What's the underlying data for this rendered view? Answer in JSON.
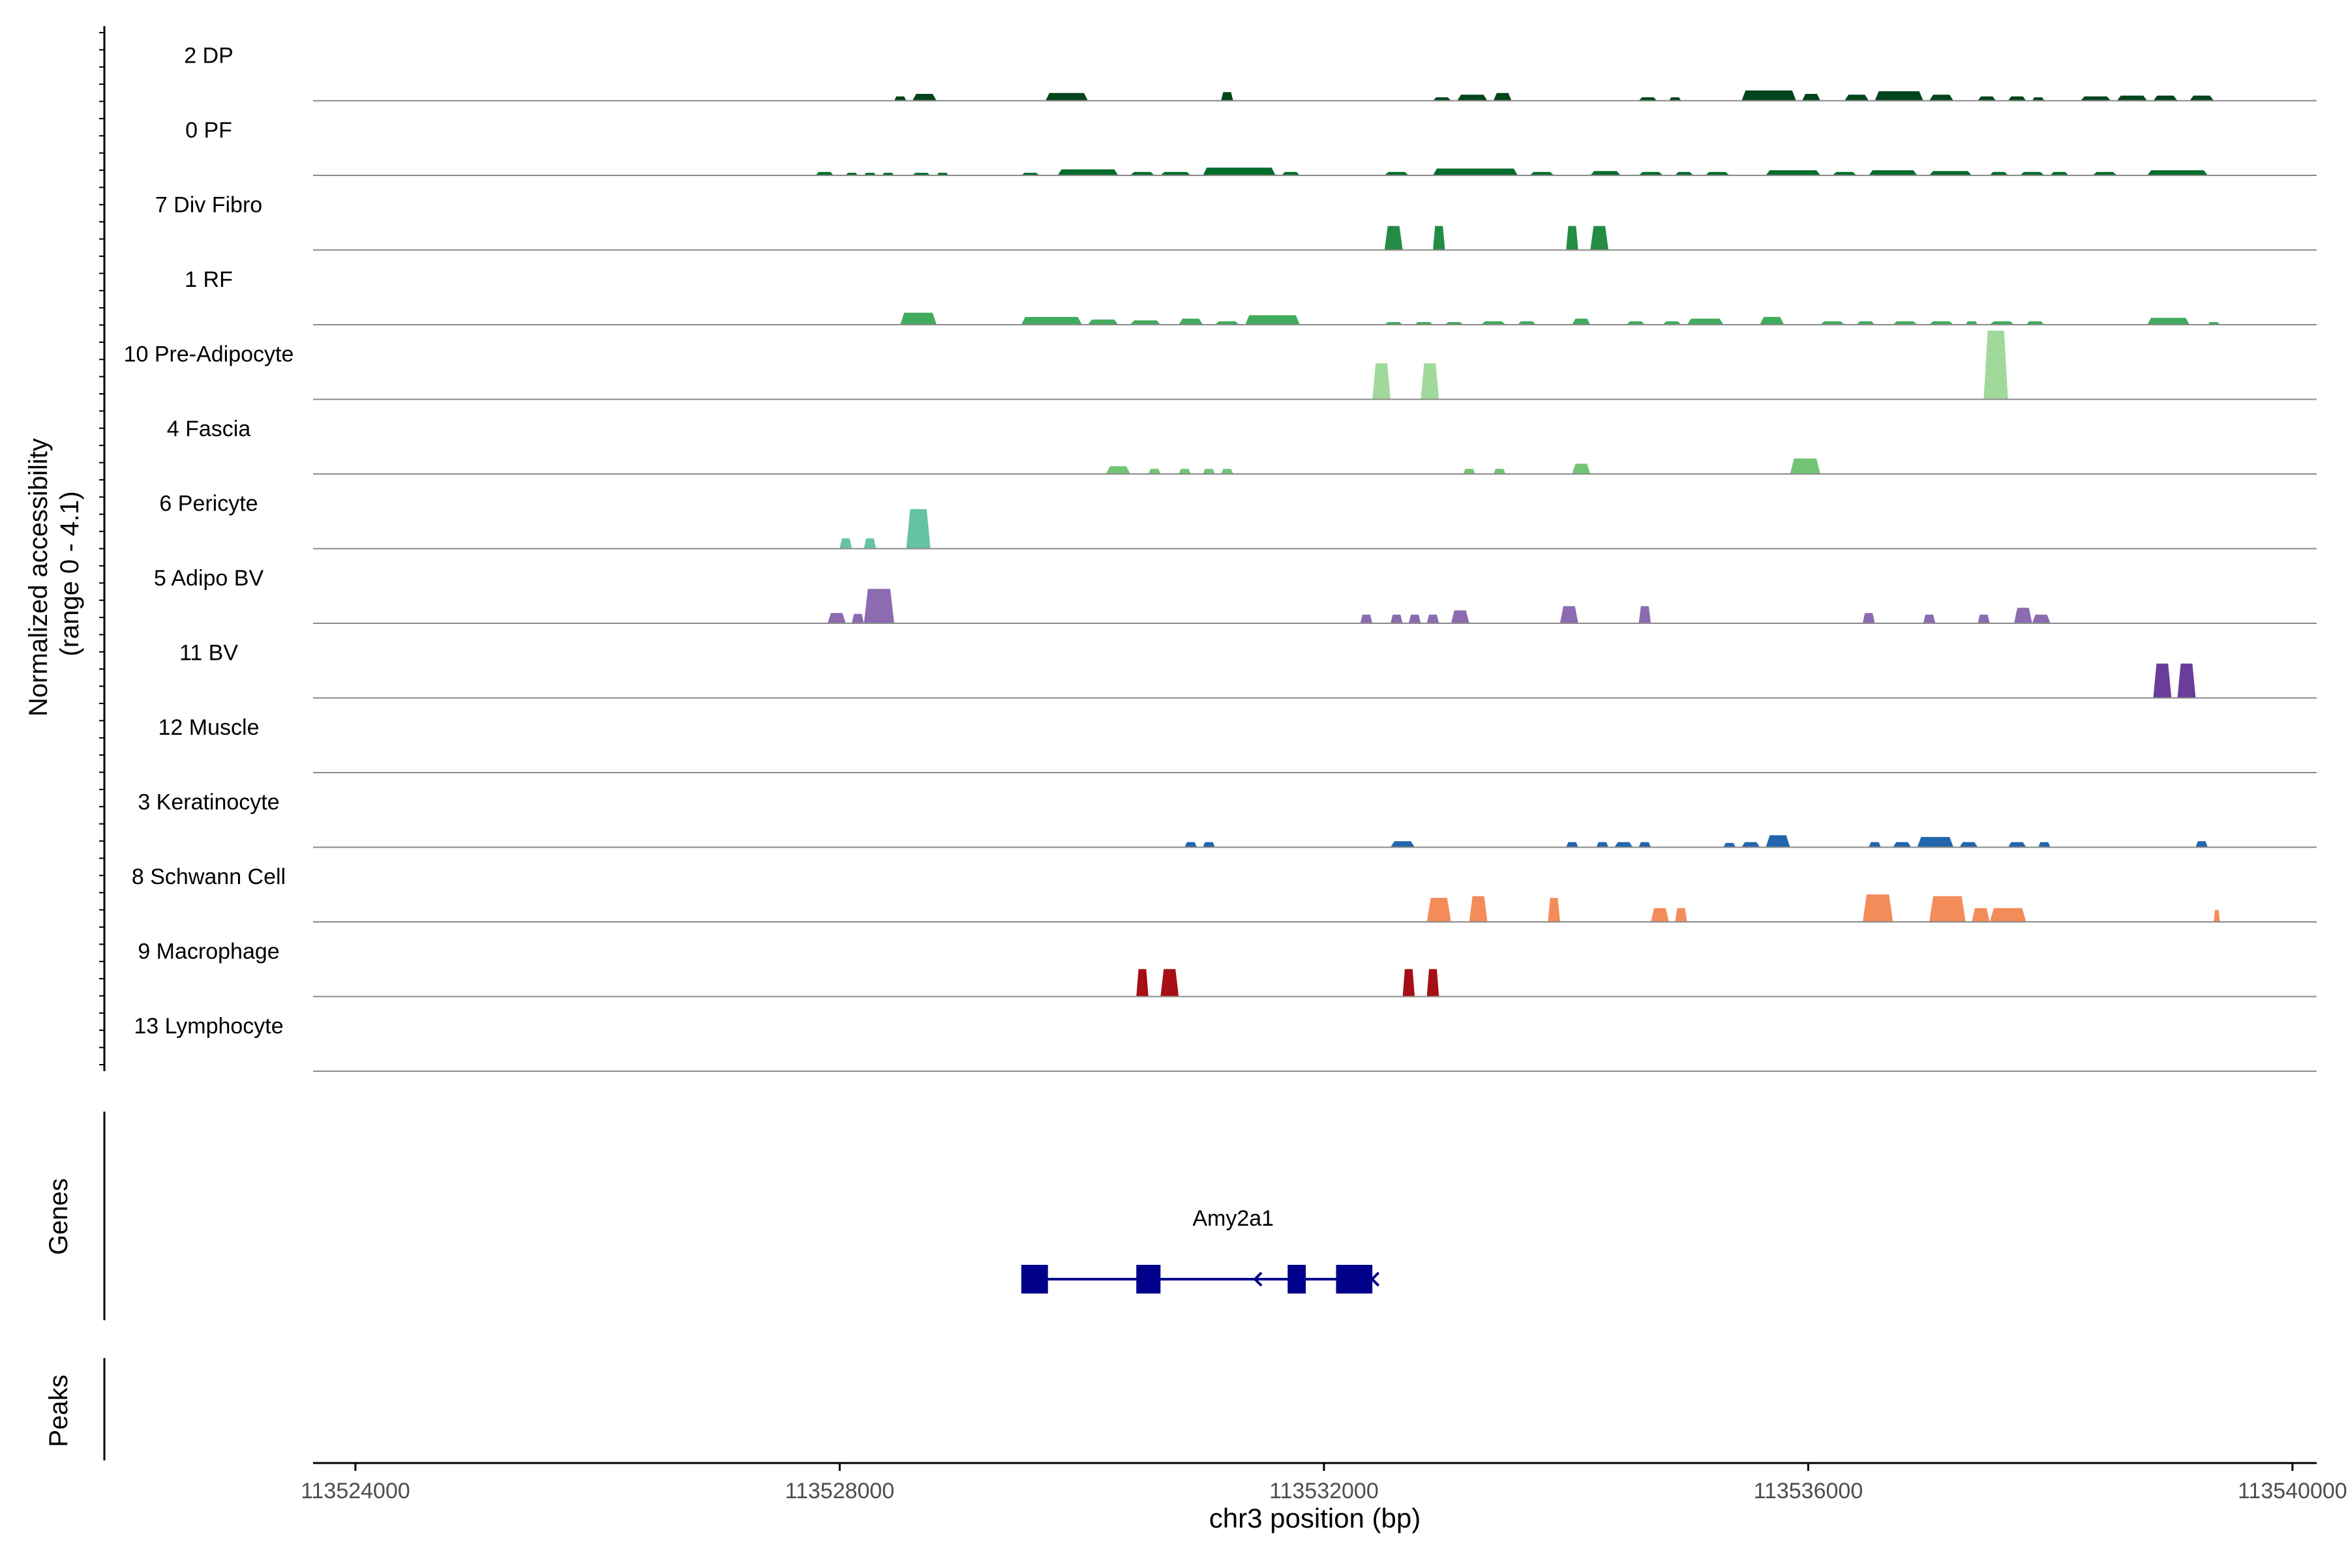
{
  "chart_data": {
    "type": "area",
    "title": "",
    "ylabel_line1": "Normalized accessibility",
    "ylabel_line2": "(range 0 - 4.1)",
    "genes_label": "Genes",
    "peaks_label": "Peaks",
    "xlabel": "chr3 position (bp)",
    "xlim": [
      113523650,
      113540200
    ],
    "xticks": [
      113524000,
      113528000,
      113532000,
      113536000,
      113540000
    ],
    "xtick_labels": [
      "113524000",
      "113528000",
      "113532000",
      "113536000",
      "113540000"
    ],
    "ylim": [
      0,
      4.1
    ],
    "grid": false,
    "legend": "none",
    "tracks": [
      {
        "label": "2 DP",
        "color": "#00441b",
        "peaks": [
          [
            113528450,
            113528550,
            0.25
          ],
          [
            113528600,
            113528800,
            0.4
          ],
          [
            113529700,
            113530050,
            0.45
          ],
          [
            113531150,
            113531250,
            0.5
          ],
          [
            113532900,
            113533050,
            0.2
          ],
          [
            113533100,
            113533350,
            0.35
          ],
          [
            113533400,
            113533550,
            0.45
          ],
          [
            113534600,
            113534750,
            0.2
          ],
          [
            113534850,
            113534950,
            0.2
          ],
          [
            113535450,
            113535900,
            0.6
          ],
          [
            113535950,
            113536100,
            0.4
          ],
          [
            113536300,
            113536500,
            0.35
          ],
          [
            113536550,
            113536950,
            0.55
          ],
          [
            113537000,
            113537200,
            0.35
          ],
          [
            113537400,
            113537550,
            0.25
          ],
          [
            113537650,
            113537800,
            0.25
          ],
          [
            113537850,
            113537950,
            0.2
          ],
          [
            113538250,
            113538500,
            0.25
          ],
          [
            113538550,
            113538800,
            0.3
          ],
          [
            113538850,
            113539050,
            0.3
          ],
          [
            113539150,
            113539350,
            0.3
          ]
        ]
      },
      {
        "label": "0 PF",
        "color": "#006d2c",
        "peaks": [
          [
            113527800,
            113527950,
            0.2
          ],
          [
            113528050,
            113528150,
            0.15
          ],
          [
            113528200,
            113528300,
            0.15
          ],
          [
            113528350,
            113528450,
            0.15
          ],
          [
            113528600,
            113528750,
            0.15
          ],
          [
            113528800,
            113528900,
            0.15
          ],
          [
            113529500,
            113529650,
            0.15
          ],
          [
            113529800,
            113530300,
            0.35
          ],
          [
            113530400,
            113530600,
            0.2
          ],
          [
            113530650,
            113530900,
            0.2
          ],
          [
            113531000,
            113531600,
            0.45
          ],
          [
            113531650,
            113531800,
            0.2
          ],
          [
            113532500,
            113532700,
            0.2
          ],
          [
            113532900,
            113533600,
            0.4
          ],
          [
            113533700,
            113533900,
            0.2
          ],
          [
            113534200,
            113534450,
            0.25
          ],
          [
            113534600,
            113534800,
            0.2
          ],
          [
            113534900,
            113535050,
            0.2
          ],
          [
            113535150,
            113535350,
            0.2
          ],
          [
            113535650,
            113536100,
            0.3
          ],
          [
            113536200,
            113536400,
            0.2
          ],
          [
            113536500,
            113536900,
            0.3
          ],
          [
            113537000,
            113537350,
            0.25
          ],
          [
            113537500,
            113537650,
            0.2
          ],
          [
            113537750,
            113537950,
            0.2
          ],
          [
            113538000,
            113538150,
            0.2
          ],
          [
            113538350,
            113538550,
            0.2
          ],
          [
            113538800,
            113539300,
            0.3
          ]
        ]
      },
      {
        "label": "7 Div Fibro",
        "color": "#238b45",
        "peaks": [
          [
            113532500,
            113532650,
            1.4
          ],
          [
            113532900,
            113533000,
            1.4
          ],
          [
            113534000,
            113534100,
            1.4
          ],
          [
            113534200,
            113534350,
            1.4
          ]
        ]
      },
      {
        "label": "1 RF",
        "color": "#41ab5d",
        "peaks": [
          [
            113528500,
            113528800,
            0.7
          ],
          [
            113529500,
            113530000,
            0.45
          ],
          [
            113530050,
            113530300,
            0.3
          ],
          [
            113530400,
            113530650,
            0.25
          ],
          [
            113530800,
            113531000,
            0.35
          ],
          [
            113531100,
            113531300,
            0.2
          ],
          [
            113531350,
            113531800,
            0.55
          ],
          [
            113532500,
            113532650,
            0.15
          ],
          [
            113532750,
            113532900,
            0.15
          ],
          [
            113533000,
            113533150,
            0.15
          ],
          [
            113533300,
            113533500,
            0.2
          ],
          [
            113533600,
            113533750,
            0.2
          ],
          [
            113534050,
            113534200,
            0.35
          ],
          [
            113534500,
            113534650,
            0.2
          ],
          [
            113534800,
            113534950,
            0.2
          ],
          [
            113535000,
            113535300,
            0.35
          ],
          [
            113535600,
            113535800,
            0.45
          ],
          [
            113536100,
            113536300,
            0.2
          ],
          [
            113536400,
            113536550,
            0.2
          ],
          [
            113536700,
            113536900,
            0.2
          ],
          [
            113537000,
            113537200,
            0.2
          ],
          [
            113537300,
            113537400,
            0.2
          ],
          [
            113537500,
            113537700,
            0.2
          ],
          [
            113537800,
            113537950,
            0.2
          ],
          [
            113538800,
            113539150,
            0.4
          ],
          [
            113539300,
            113539400,
            0.15
          ]
        ]
      },
      {
        "label": "10 Pre-Adipocyte",
        "color": "#a1d99b",
        "peaks": [
          [
            113532400,
            113532550,
            2.1
          ],
          [
            113532800,
            113532950,
            2.1
          ],
          [
            113537450,
            113537650,
            4.0
          ]
        ]
      },
      {
        "label": "4 Fascia",
        "color": "#74c476",
        "peaks": [
          [
            113530200,
            113530400,
            0.45
          ],
          [
            113530550,
            113530650,
            0.3
          ],
          [
            113530800,
            113530900,
            0.3
          ],
          [
            113531000,
            113531100,
            0.3
          ],
          [
            113531150,
            113531250,
            0.3
          ],
          [
            113533150,
            113533250,
            0.3
          ],
          [
            113533400,
            113533500,
            0.3
          ],
          [
            113534050,
            113534200,
            0.6
          ],
          [
            113535850,
            113536100,
            0.9
          ]
        ]
      },
      {
        "label": "6 Pericyte",
        "color": "#66c2a4",
        "peaks": [
          [
            113528000,
            113528100,
            0.6
          ],
          [
            113528200,
            113528300,
            0.6
          ],
          [
            113528550,
            113528750,
            2.3
          ]
        ]
      },
      {
        "label": "5 Adipo BV",
        "color": "#8c6bb1",
        "peaks": [
          [
            113527900,
            113528050,
            0.6
          ],
          [
            113528100,
            113528200,
            0.55
          ],
          [
            113528200,
            113528450,
            2.0
          ],
          [
            113532300,
            113532400,
            0.5
          ],
          [
            113532550,
            113532650,
            0.5
          ],
          [
            113532700,
            113532800,
            0.5
          ],
          [
            113532850,
            113532950,
            0.5
          ],
          [
            113533050,
            113533200,
            0.75
          ],
          [
            113533950,
            113534100,
            1.0
          ],
          [
            113534600,
            113534700,
            1.0
          ],
          [
            113536450,
            113536550,
            0.6
          ],
          [
            113536950,
            113537050,
            0.5
          ],
          [
            113537400,
            113537500,
            0.5
          ],
          [
            113537700,
            113537850,
            0.9
          ],
          [
            113537850,
            113538000,
            0.5
          ]
        ]
      },
      {
        "label": "11 BV",
        "color": "#6a3d9a",
        "peaks": [
          [
            113538850,
            113539000,
            2.0
          ],
          [
            113539050,
            113539200,
            2.0
          ]
        ]
      },
      {
        "label": "12 Muscle",
        "color": "#54278f",
        "peaks": []
      },
      {
        "label": "3 Keratinocyte",
        "color": "#2166ac",
        "peaks": [
          [
            113530850,
            113530950,
            0.3
          ],
          [
            113531000,
            113531100,
            0.3
          ],
          [
            113532550,
            113532750,
            0.35
          ],
          [
            113534000,
            113534100,
            0.3
          ],
          [
            113534250,
            113534350,
            0.3
          ],
          [
            113534400,
            113534550,
            0.3
          ],
          [
            113534600,
            113534700,
            0.3
          ],
          [
            113535300,
            113535400,
            0.25
          ],
          [
            113535450,
            113535600,
            0.3
          ],
          [
            113535650,
            113535850,
            0.7
          ],
          [
            113536500,
            113536600,
            0.3
          ],
          [
            113536700,
            113536850,
            0.3
          ],
          [
            113536900,
            113537200,
            0.6
          ],
          [
            113537250,
            113537400,
            0.3
          ],
          [
            113537650,
            113537800,
            0.3
          ],
          [
            113537900,
            113538000,
            0.3
          ],
          [
            113539200,
            113539300,
            0.35
          ]
        ]
      },
      {
        "label": "8 Schwann Cell",
        "color": "#f48c5a",
        "peaks": [
          [
            113532850,
            113533050,
            1.4
          ],
          [
            113533200,
            113533350,
            1.5
          ],
          [
            113533850,
            113533950,
            1.4
          ],
          [
            113534700,
            113534850,
            0.8
          ],
          [
            113534900,
            113535000,
            0.8
          ],
          [
            113536450,
            113536700,
            1.6
          ],
          [
            113537000,
            113537300,
            1.5
          ],
          [
            113537350,
            113537500,
            0.8
          ],
          [
            113537500,
            113537800,
            0.8
          ],
          [
            113539350,
            113539400,
            0.7
          ]
        ]
      },
      {
        "label": "9 Macrophage",
        "color": "#a50f15",
        "peaks": [
          [
            113530450,
            113530550,
            1.6
          ],
          [
            113530650,
            113530800,
            1.6
          ],
          [
            113532650,
            113532750,
            1.6
          ],
          [
            113532850,
            113532950,
            1.6
          ]
        ]
      },
      {
        "label": "13 Lymphocyte",
        "color": "#1f1f1f",
        "peaks": []
      }
    ],
    "gene": {
      "name": "Amy2a1",
      "start": 113529500,
      "end": 113532400,
      "strand": "-",
      "color": "#00008b",
      "exons": [
        [
          113529500,
          113529720
        ],
        [
          113530450,
          113530650
        ],
        [
          113531700,
          113531850
        ],
        [
          113532100,
          113532400
        ]
      ]
    },
    "peaks_track": []
  }
}
